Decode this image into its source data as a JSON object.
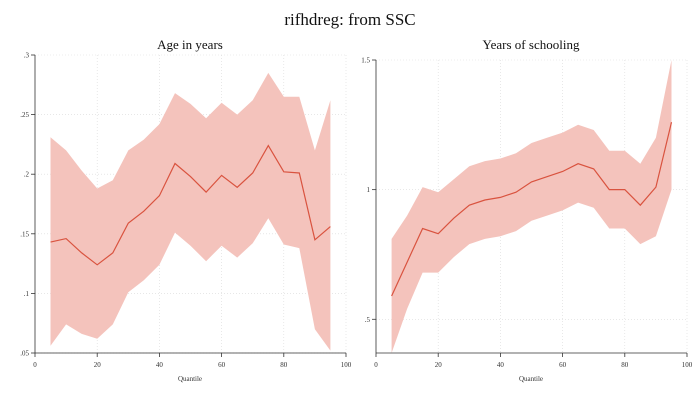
{
  "figure_title": "rifhdreg: from SSC",
  "colors": {
    "band": "#f4c3bc",
    "line": "#d9533f",
    "grid": "#d9d9d9",
    "axis": "#333333"
  },
  "chart_data": [
    {
      "type": "area",
      "title": "Age in years",
      "xlabel": "Quantile",
      "ylabel": "",
      "xlim": [
        0,
        100
      ],
      "ylim": [
        0.05,
        0.3
      ],
      "x_ticks": [
        0,
        20,
        40,
        60,
        80,
        100
      ],
      "y_ticks": [
        0.05,
        0.1,
        0.15,
        0.2,
        0.25,
        0.3
      ],
      "y_tick_labels": [
        ".05",
        ".1",
        ".15",
        ".2",
        ".25",
        ".3"
      ],
      "grid": true,
      "x": [
        5,
        10,
        15,
        20,
        25,
        30,
        35,
        40,
        45,
        50,
        55,
        60,
        65,
        70,
        75,
        80,
        85,
        90,
        95
      ],
      "series": [
        {
          "type": "line",
          "values": [
            0.143,
            0.146,
            0.134,
            0.124,
            0.134,
            0.159,
            0.169,
            0.182,
            0.209,
            0.198,
            0.185,
            0.199,
            0.189,
            0.201,
            0.224,
            0.202,
            0.201,
            0.145,
            0.156
          ]
        },
        {
          "type": "band",
          "upper": [
            0.231,
            0.22,
            0.203,
            0.188,
            0.195,
            0.22,
            0.229,
            0.242,
            0.268,
            0.259,
            0.247,
            0.26,
            0.25,
            0.262,
            0.285,
            0.265,
            0.265,
            0.22,
            0.262
          ],
          "lower": [
            0.056,
            0.074,
            0.066,
            0.062,
            0.074,
            0.101,
            0.111,
            0.124,
            0.151,
            0.14,
            0.127,
            0.14,
            0.13,
            0.142,
            0.163,
            0.141,
            0.138,
            0.07,
            0.052
          ]
        }
      ]
    },
    {
      "type": "area",
      "title": "Years of schooling",
      "xlabel": "Quantile",
      "ylabel": "",
      "xlim": [
        0,
        100
      ],
      "ylim": [
        0.37,
        1.5
      ],
      "x_ticks": [
        0,
        20,
        40,
        60,
        80,
        100
      ],
      "y_ticks": [
        0.5,
        1,
        1.5
      ],
      "y_tick_labels": [
        ".5",
        "1",
        "1.5"
      ],
      "grid": true,
      "x": [
        5,
        10,
        15,
        20,
        25,
        30,
        35,
        40,
        45,
        50,
        55,
        60,
        65,
        70,
        75,
        80,
        85,
        90,
        95
      ],
      "series": [
        {
          "type": "line",
          "values": [
            0.59,
            0.72,
            0.85,
            0.83,
            0.89,
            0.94,
            0.96,
            0.97,
            0.99,
            1.03,
            1.05,
            1.07,
            1.1,
            1.08,
            1.0,
            1.0,
            0.94,
            1.01,
            1.26
          ]
        },
        {
          "type": "band",
          "upper": [
            0.81,
            0.9,
            1.01,
            0.99,
            1.04,
            1.09,
            1.11,
            1.12,
            1.14,
            1.18,
            1.2,
            1.22,
            1.25,
            1.23,
            1.15,
            1.15,
            1.1,
            1.2,
            1.5
          ],
          "lower": [
            0.37,
            0.54,
            0.68,
            0.68,
            0.74,
            0.79,
            0.81,
            0.82,
            0.84,
            0.88,
            0.9,
            0.92,
            0.95,
            0.93,
            0.85,
            0.85,
            0.79,
            0.82,
            1.0
          ]
        }
      ]
    }
  ]
}
